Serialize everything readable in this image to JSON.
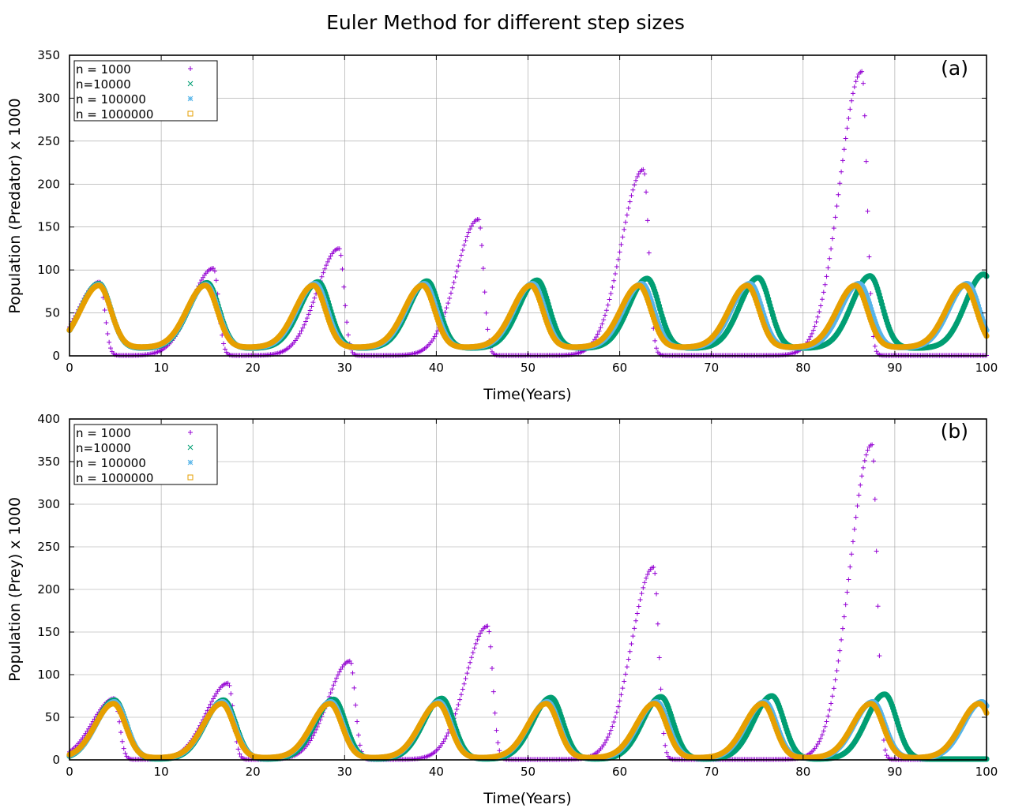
{
  "figure": {
    "title": "Euler Method for different step sizes"
  },
  "colors": {
    "n1000": "#9400d3",
    "n10000": "#009e73",
    "n100000": "#56b4e9",
    "n1000000": "#e69f00"
  },
  "chart_data": [
    {
      "type": "scatter",
      "panel_label": "(a)",
      "xlabel": "Time(Years)",
      "ylabel": "Population (Predator) x 1000",
      "xlim": [
        0,
        100
      ],
      "ylim": [
        0,
        350
      ],
      "xticks": [
        0,
        10,
        20,
        30,
        40,
        50,
        60,
        70,
        80,
        90,
        100
      ],
      "yticks": [
        0,
        50,
        100,
        150,
        200,
        250,
        300,
        350
      ],
      "grid": true,
      "legend": {
        "position": "top-left"
      },
      "series": [
        {
          "name": "n = 1000",
          "marker": "plus",
          "peaks": [
            [
              3.3,
              86
            ],
            [
              15.7,
              102
            ],
            [
              29.4,
              125
            ],
            [
              44.6,
              159
            ],
            [
              62.6,
              217
            ],
            [
              86.4,
              331
            ]
          ],
          "baseline": 0.5
        },
        {
          "name": "n=10000",
          "marker": "x",
          "peaks": [
            [
              3.2,
              84
            ],
            [
              15.0,
              85
            ],
            [
              27.1,
              86
            ],
            [
              39.0,
              87
            ],
            [
              51.0,
              88
            ],
            [
              63.0,
              90
            ],
            [
              75.1,
              91
            ],
            [
              87.3,
              93
            ],
            [
              99.7,
              95
            ]
          ],
          "baseline": 9
        },
        {
          "name": "n = 100000",
          "marker": "star",
          "peaks": [
            [
              3.2,
              83
            ],
            [
              14.9,
              83
            ],
            [
              26.8,
              84
            ],
            [
              38.7,
              84
            ],
            [
              50.5,
              84
            ],
            [
              62.4,
              84
            ],
            [
              74.2,
              84
            ],
            [
              86.1,
              84
            ],
            [
              97.9,
              84
            ]
          ],
          "baseline": 9.5
        },
        {
          "name": "n = 1000000",
          "marker": "box",
          "peaks": [
            [
              3.2,
              82
            ],
            [
              14.8,
              82
            ],
            [
              26.6,
              82
            ],
            [
              38.5,
              82
            ],
            [
              50.3,
              82
            ],
            [
              62.1,
              82
            ],
            [
              73.9,
              82
            ],
            [
              85.7,
              82
            ],
            [
              97.6,
              82
            ]
          ],
          "baseline": 10
        }
      ]
    },
    {
      "type": "scatter",
      "panel_label": "(b)",
      "xlabel": "Time(Years)",
      "ylabel": "Population (Prey) x 1000",
      "xlim": [
        0,
        100
      ],
      "ylim": [
        0,
        400
      ],
      "xticks": [
        0,
        10,
        20,
        30,
        40,
        50,
        60,
        70,
        80,
        90,
        100
      ],
      "yticks": [
        0,
        50,
        100,
        150,
        200,
        250,
        300,
        350,
        400
      ],
      "grid": true,
      "legend": {
        "position": "top-left"
      },
      "series": [
        {
          "name": "n = 1000",
          "marker": "plus",
          "peaks": [
            [
              4.9,
              72
            ],
            [
              17.3,
              90
            ],
            [
              30.6,
              116
            ],
            [
              45.6,
              157
            ],
            [
              63.7,
              226
            ],
            [
              87.5,
              370
            ]
          ],
          "baseline": 0.5
        },
        {
          "name": "n=10000",
          "marker": "x",
          "peaks": [
            [
              4.9,
              70
            ],
            [
              16.8,
              70
            ],
            [
              28.8,
              71
            ],
            [
              40.6,
              72
            ],
            [
              52.5,
              73
            ],
            [
              64.5,
              74
            ],
            [
              76.6,
              75
            ],
            [
              88.9,
              77
            ]
          ],
          "baseline": 1
        },
        {
          "name": "n = 100000",
          "marker": "star",
          "peaks": [
            [
              4.9,
              68
            ],
            [
              16.7,
              68
            ],
            [
              28.5,
              68
            ],
            [
              40.3,
              68
            ],
            [
              52.1,
              68
            ],
            [
              64.0,
              68
            ],
            [
              75.8,
              68
            ],
            [
              87.6,
              68
            ],
            [
              99.5,
              68
            ]
          ],
          "baseline": 2
        },
        {
          "name": "n = 1000000",
          "marker": "box",
          "peaks": [
            [
              4.8,
              66
            ],
            [
              16.6,
              66
            ],
            [
              28.4,
              66
            ],
            [
              40.2,
              66
            ],
            [
              52.0,
              66
            ],
            [
              63.8,
              66
            ],
            [
              75.6,
              66
            ],
            [
              87.4,
              66
            ],
            [
              99.2,
              66
            ]
          ],
          "baseline": 2.5
        }
      ]
    }
  ]
}
